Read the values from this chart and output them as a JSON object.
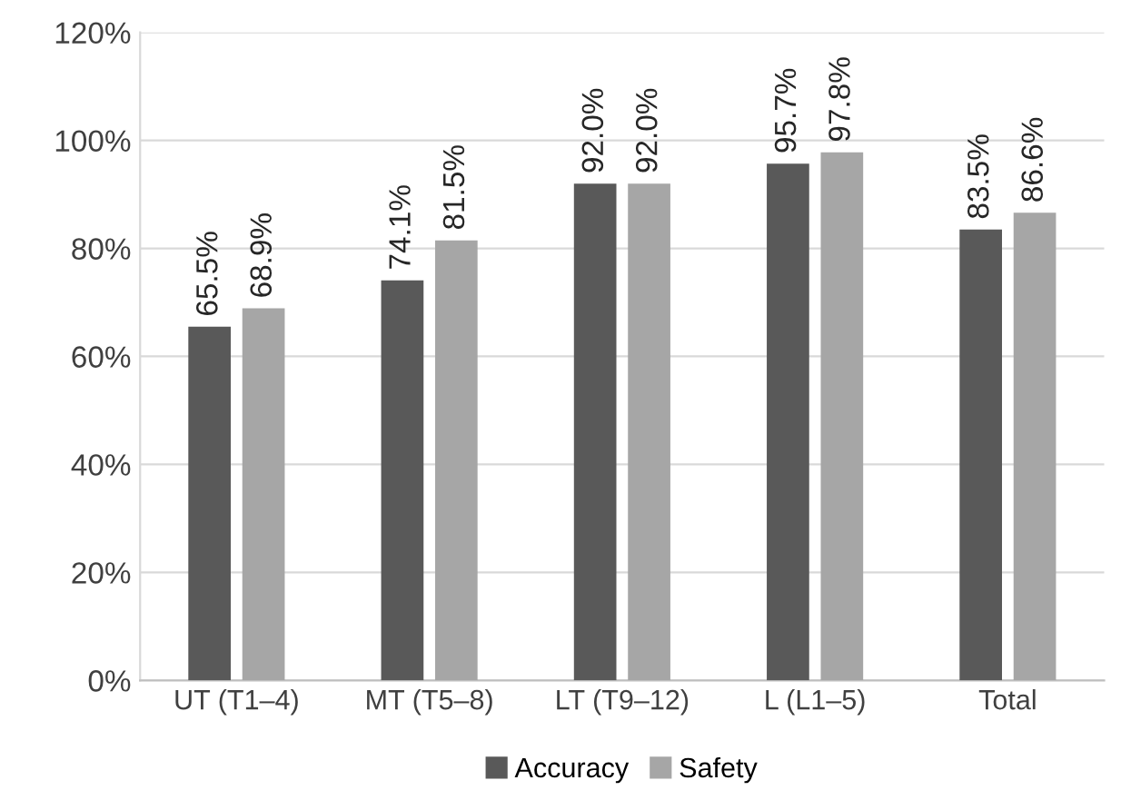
{
  "chart_data": {
    "type": "bar",
    "categories": [
      "UT (T1–4)",
      "MT (T5–8)",
      "LT (T9–12)",
      "L (L1–5)",
      "Total"
    ],
    "series": [
      {
        "name": "Accuracy",
        "color": "#595959",
        "values": [
          65.5,
          74.1,
          92.0,
          95.7,
          83.5
        ],
        "value_labels": [
          "65.5%",
          "74.1%",
          "92.0%",
          "95.7%",
          "83.5%"
        ]
      },
      {
        "name": "Safety",
        "color": "#a6a6a6",
        "values": [
          68.9,
          81.5,
          92.0,
          97.8,
          86.6
        ],
        "value_labels": [
          "68.9%",
          "81.5%",
          "92.0%",
          "97.8%",
          "86.6%"
        ]
      }
    ],
    "ylim": [
      0,
      120
    ],
    "yticks": [
      {
        "value": 0,
        "label": "0%"
      },
      {
        "value": 20,
        "label": "20%"
      },
      {
        "value": 40,
        "label": "40%"
      },
      {
        "value": 60,
        "label": "60%"
      },
      {
        "value": 80,
        "label": "80%"
      },
      {
        "value": 100,
        "label": "100%"
      },
      {
        "value": 120,
        "label": "120%"
      }
    ],
    "grid": "y",
    "legend": "bottom"
  }
}
